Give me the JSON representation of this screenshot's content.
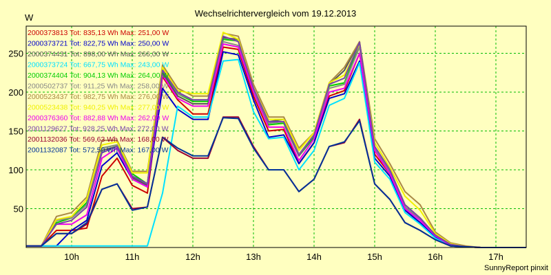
{
  "chart_data": {
    "type": "line",
    "title": "Wechselrichtervergleich vom 19.12.2013",
    "ylabel": "W",
    "xlabel": "",
    "footer": "SunnyReport pinxit",
    "ylim": [
      0,
      285
    ],
    "xlim": [
      9.25,
      17.5
    ],
    "yticks": [
      50,
      100,
      150,
      200,
      250
    ],
    "xticks": [
      {
        "value": 10,
        "label": "10h"
      },
      {
        "value": 11,
        "label": "11h"
      },
      {
        "value": 12,
        "label": "12h"
      },
      {
        "value": 13,
        "label": "13h"
      },
      {
        "value": 14,
        "label": "14h"
      },
      {
        "value": 15,
        "label": "15h"
      },
      {
        "value": 16,
        "label": "16h"
      },
      {
        "value": 17,
        "label": "17h"
      }
    ],
    "grid": true,
    "legend_position": "top-left",
    "x": [
      9.25,
      9.5,
      9.75,
      10.0,
      10.25,
      10.5,
      10.75,
      11.0,
      11.25,
      11.5,
      11.75,
      12.0,
      12.25,
      12.5,
      12.75,
      13.0,
      13.25,
      13.5,
      13.75,
      14.0,
      14.25,
      14.5,
      14.75,
      15.0,
      15.25,
      15.5,
      15.75,
      16.0,
      16.25,
      16.5,
      16.75,
      17.0,
      17.25,
      17.5
    ],
    "series": [
      {
        "name": "2000373813 Tot: 835,13 Wh Max: 251,00 W",
        "color": "#cc0000",
        "values": [
          2,
          2,
          22,
          22,
          25,
          92,
          115,
          80,
          70,
          220,
          190,
          172,
          172,
          258,
          255,
          195,
          150,
          152,
          108,
          135,
          195,
          202,
          250,
          120,
          95,
          48,
          32,
          14,
          2,
          1,
          0,
          0,
          0,
          0
        ]
      },
      {
        "name": "2000373721 Tot: 822,75 Wh Max: 250,00 W",
        "color": "#0000cc",
        "values": [
          2,
          2,
          2,
          22,
          35,
          105,
          122,
          88,
          78,
          205,
          178,
          165,
          165,
          252,
          248,
          190,
          142,
          145,
          108,
          135,
          192,
          198,
          240,
          115,
          92,
          48,
          32,
          14,
          2,
          1,
          0,
          0,
          0,
          0
        ]
      },
      {
        "name": "2000374431 Tot: 898,00 Wh Max: 266,00 W",
        "color": "#555555",
        "values": [
          2,
          2,
          35,
          38,
          55,
          125,
          130,
          90,
          80,
          225,
          195,
          185,
          185,
          270,
          268,
          205,
          162,
          165,
          120,
          145,
          210,
          228,
          265,
          130,
          100,
          55,
          38,
          16,
          4,
          1,
          0,
          0,
          0,
          0
        ]
      },
      {
        "name": "2000373724 Tot: 667,75 Wh Max: 243,00 W",
        "color": "#00e0ff",
        "values": [
          2,
          2,
          2,
          2,
          2,
          2,
          2,
          2,
          2,
          70,
          182,
          168,
          168,
          240,
          242,
          175,
          140,
          142,
          100,
          125,
          183,
          192,
          238,
          110,
          88,
          45,
          30,
          12,
          2,
          1,
          0,
          0,
          0,
          0
        ]
      },
      {
        "name": "2000374404 Tot: 904,13 Wh Max: 264,00 W",
        "color": "#00cc00",
        "values": [
          2,
          2,
          32,
          38,
          58,
          128,
          132,
          95,
          82,
          228,
          198,
          188,
          188,
          268,
          266,
          200,
          158,
          160,
          118,
          142,
          208,
          212,
          262,
          128,
          98,
          52,
          36,
          16,
          4,
          1,
          0,
          0,
          0,
          0
        ]
      },
      {
        "name": "2000502737 Tot: 911,25 Wh Max: 258,00 W",
        "color": "#888888",
        "values": [
          2,
          2,
          35,
          38,
          55,
          128,
          132,
          92,
          82,
          230,
          198,
          190,
          190,
          265,
          260,
          205,
          160,
          162,
          120,
          145,
          205,
          210,
          258,
          128,
          98,
          52,
          36,
          16,
          4,
          1,
          0,
          0,
          0,
          0
        ]
      },
      {
        "name": "2000523437 Tot: 982,75 Wh Max: 276,00 W",
        "color": "#aa8844",
        "values": [
          2,
          2,
          40,
          45,
          65,
          138,
          138,
          98,
          98,
          235,
          205,
          195,
          195,
          276,
          272,
          210,
          168,
          168,
          128,
          148,
          212,
          232,
          265,
          140,
          108,
          72,
          55,
          20,
          6,
          2,
          0,
          0,
          0,
          0
        ]
      },
      {
        "name": "2000523438 Tot: 940,25 Wh Max: 277,00 W",
        "color": "#f0f000",
        "values": [
          2,
          2,
          36,
          40,
          62,
          132,
          136,
          96,
          96,
          232,
          202,
          198,
          198,
          277,
          268,
          205,
          165,
          165,
          125,
          148,
          212,
          222,
          262,
          135,
          103,
          66,
          48,
          18,
          5,
          1,
          0,
          0,
          0,
          0
        ]
      },
      {
        "name": "2000376360 Tot: 882,88 Wh Max: 262,00 W",
        "color": "#ee00ee",
        "values": [
          2,
          2,
          30,
          30,
          42,
          115,
          128,
          88,
          78,
          222,
          192,
          182,
          182,
          262,
          258,
          200,
          155,
          155,
          112,
          140,
          200,
          205,
          250,
          125,
          95,
          50,
          35,
          15,
          3,
          1,
          0,
          0,
          0,
          0
        ]
      },
      {
        "name": "2001129627 Tot: 928,25 Wh Max: 272,00 W",
        "color": "#7744aa",
        "values": [
          2,
          2,
          30,
          35,
          52,
          122,
          130,
          92,
          82,
          228,
          200,
          190,
          190,
          272,
          265,
          205,
          162,
          162,
          118,
          145,
          210,
          218,
          264,
          130,
          100,
          55,
          38,
          16,
          4,
          1,
          0,
          0,
          0,
          0
        ]
      },
      {
        "name": "2001132036 Tot: 569,63 Wh Max: 168,00 W",
        "color": "#990033",
        "values": [
          2,
          2,
          18,
          18,
          30,
          75,
          82,
          50,
          52,
          142,
          125,
          115,
          115,
          168,
          168,
          130,
          100,
          100,
          72,
          88,
          130,
          135,
          165,
          82,
          62,
          32,
          22,
          10,
          2,
          1,
          0,
          0,
          0,
          0
        ]
      },
      {
        "name": "2001132087 Tot: 572,50 Wh Max: 167,00 W",
        "color": "#003399",
        "values": [
          2,
          2,
          18,
          18,
          32,
          75,
          82,
          48,
          52,
          142,
          128,
          118,
          118,
          167,
          166,
          128,
          100,
          100,
          72,
          88,
          130,
          136,
          163,
          82,
          62,
          32,
          22,
          10,
          2,
          1,
          0,
          0,
          0,
          0
        ]
      }
    ]
  }
}
